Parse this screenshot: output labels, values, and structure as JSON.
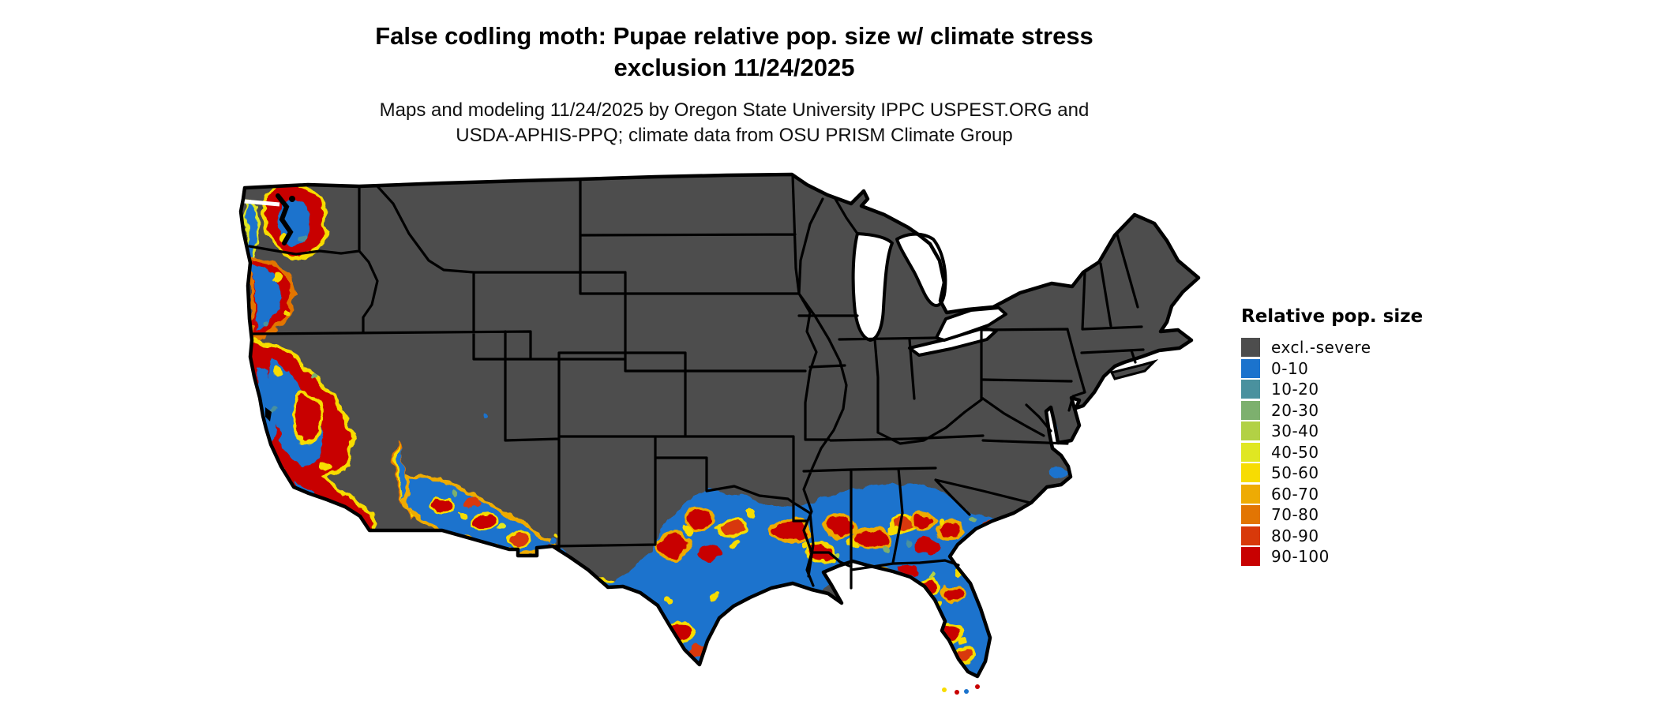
{
  "title": {
    "line1": "False codling moth: Pupae relative pop. size w/ climate stress",
    "line2": "exclusion 11/24/2025"
  },
  "subtitle": {
    "line1": "Maps and modeling 11/24/2025 by Oregon State University IPPC USPEST.ORG and",
    "line2": "USDA-APHIS-PPQ; climate data from OSU PRISM Climate Group"
  },
  "legend": {
    "title": "Relative pop. size",
    "items": [
      {
        "label": "excl.-severe",
        "color": "#4d4d4d"
      },
      {
        "label": "0-10",
        "color": "#1b73cd"
      },
      {
        "label": "10-20",
        "color": "#4a919e"
      },
      {
        "label": "20-30",
        "color": "#7db06e"
      },
      {
        "label": "30-40",
        "color": "#b2d145"
      },
      {
        "label": "40-50",
        "color": "#e0e722"
      },
      {
        "label": "50-60",
        "color": "#f7dc02"
      },
      {
        "label": "60-70",
        "color": "#eeab04"
      },
      {
        "label": "70-80",
        "color": "#e27503"
      },
      {
        "label": "80-90",
        "color": "#d8390a"
      },
      {
        "label": "90-100",
        "color": "#c80101"
      }
    ]
  },
  "map": {
    "background": "#ffffff",
    "land_color": "#4d4d4d",
    "border_color": "#000000",
    "colored_regions_visible": [
      "Puget Sound and western Washington",
      "western Oregon (coast and Willamette Valley)",
      "California Central Valley and coast",
      "southern Arizona",
      "Rio Grande valley and southern/eastern Texas",
      "Gulf Coast band across Louisiana, southern Mississippi and Alabama",
      "southern Georgia and coastal South Carolina",
      "Florida peninsula",
      "small coastal specks at Chesapeake Bay and the Carolina coast"
    ]
  }
}
